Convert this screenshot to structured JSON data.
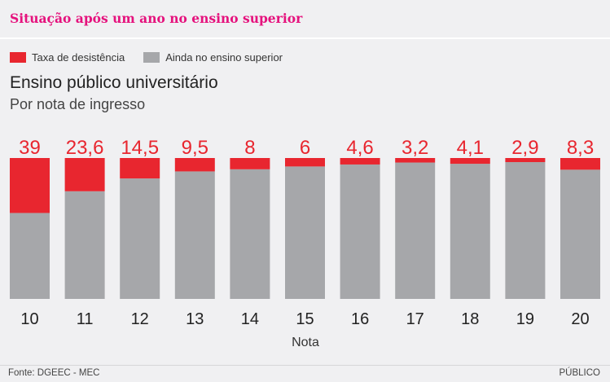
{
  "header": {
    "title": "Situação após um ano no ensino superior"
  },
  "footer": {
    "source": "Fonte: DGEEC - MEC",
    "brand": "PÚBLICO"
  },
  "colors": {
    "dropout": "#e8262f",
    "remaining": "#a6a7aa",
    "title": "#e5127d"
  },
  "chart_data": {
    "type": "bar",
    "stacked": true,
    "title": "Ensino público universitário",
    "subtitle": "Por nota de ingresso",
    "xlabel": "Nota",
    "ylabel": "",
    "ylim": [
      0,
      100
    ],
    "legend": {
      "position": "top-left",
      "entries": [
        "Taxa de desistência",
        "Ainda no ensino superior"
      ]
    },
    "categories": [
      "10",
      "11",
      "12",
      "13",
      "14",
      "15",
      "16",
      "17",
      "18",
      "19",
      "20"
    ],
    "series": [
      {
        "name": "Taxa de desistência",
        "values": [
          39,
          23.6,
          14.5,
          9.5,
          8,
          6,
          4.6,
          3.2,
          4.1,
          2.9,
          8.3
        ]
      },
      {
        "name": "Ainda no ensino superior",
        "values": [
          61,
          76.4,
          85.5,
          90.5,
          92,
          94,
          95.4,
          96.8,
          95.9,
          97.1,
          91.7
        ]
      }
    ],
    "data_labels": [
      "39",
      "23,6",
      "14,5",
      "9,5",
      "8",
      "6",
      "4,6",
      "3,2",
      "4,1",
      "2,9",
      "8,3"
    ]
  }
}
